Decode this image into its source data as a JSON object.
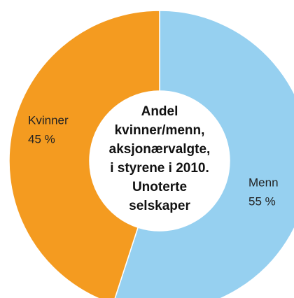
{
  "chart_data": {
    "type": "donut",
    "title_lines": [
      "Andel",
      "kvinner/menn,",
      "aksjonærvalgte,",
      "i styrene i 2010.",
      "Unoterte",
      "selskaper"
    ],
    "categories": [
      "Menn",
      "Kvinner"
    ],
    "values": [
      55,
      45
    ],
    "value_labels": [
      "55 %",
      "45 %"
    ],
    "colors": [
      "#96d0f0",
      "#f49b20"
    ]
  }
}
